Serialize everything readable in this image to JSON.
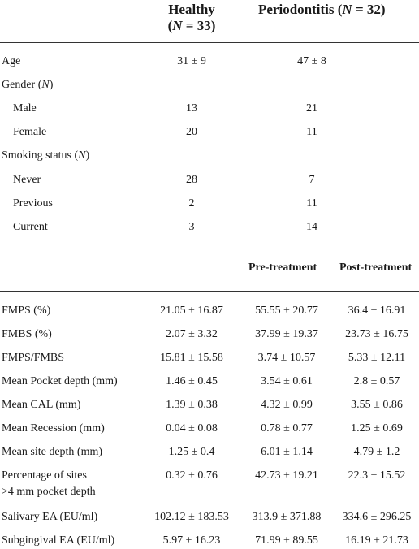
{
  "header": {
    "healthy_line1": "Healthy",
    "healthy_line2": "(N = 33)",
    "perio": "Periodontitis (N = 32)"
  },
  "demographics": [
    {
      "label": "Age",
      "healthy": "31 ± 9",
      "perio": "47 ± 8",
      "indent": false
    },
    {
      "label": "Gender (N)",
      "healthy": "",
      "perio": "",
      "indent": false
    },
    {
      "label": "Male",
      "healthy": "13",
      "perio": "21",
      "indent": true
    },
    {
      "label": "Female",
      "healthy": "20",
      "perio": "11",
      "indent": true
    },
    {
      "label": "Smoking status (N)",
      "healthy": "",
      "perio": "",
      "indent": false
    },
    {
      "label": "Never",
      "healthy": "28",
      "perio": "7",
      "indent": true
    },
    {
      "label": "Previous",
      "healthy": "2",
      "perio": "11",
      "indent": true
    },
    {
      "label": "Current",
      "healthy": "3",
      "perio": "14",
      "indent": true
    }
  ],
  "subheader": {
    "pre": "Pre-treatment",
    "post": "Post-treatment"
  },
  "clinical": [
    {
      "label": "FMPS (%)",
      "healthy": "21.05 ± 16.87",
      "pre": "55.55 ± 20.77",
      "post": "36.4 ± 16.91"
    },
    {
      "label": "FMBS (%)",
      "healthy": "2.07 ± 3.32",
      "pre": "37.99 ± 19.37",
      "post": "23.73 ± 16.75"
    },
    {
      "label": "FMPS/FMBS",
      "healthy": "15.81 ± 15.58",
      "pre": "3.74 ± 10.57",
      "post": "5.33 ± 12.11"
    },
    {
      "label": "Mean Pocket depth (mm)",
      "healthy": "1.46 ± 0.45",
      "pre": "3.54 ± 0.61",
      "post": "2.8 ± 0.57"
    },
    {
      "label": "Mean CAL (mm)",
      "healthy": "1.39 ± 0.38",
      "pre": "4.32 ± 0.99",
      "post": "3.55 ± 0.86"
    },
    {
      "label": "Mean Recession (mm)",
      "healthy": "0.04 ± 0.08",
      "pre": "0.78 ± 0.77",
      "post": "1.25 ± 0.69"
    },
    {
      "label": "Mean site depth (mm)",
      "healthy": "1.25 ± 0.4",
      "pre": "6.01 ± 1.14",
      "post": "4.79 ± 1.2"
    },
    {
      "label": "Percentage of sites",
      "label2": ">4 mm pocket depth",
      "healthy": "0.32 ± 0.76",
      "pre": "42.73 ± 19.21",
      "post": "22.3 ± 15.52"
    },
    {
      "label": "Salivary EA (EU/ml)",
      "healthy": "102.12 ± 183.53",
      "pre": "313.9 ± 371.88",
      "post": "334.6 ± 296.25"
    },
    {
      "label": "Subgingival EA (EU/ml)",
      "healthy": "5.97 ± 16.23",
      "pre": "71.99 ± 89.55",
      "post": "16.19 ± 21.73"
    }
  ]
}
